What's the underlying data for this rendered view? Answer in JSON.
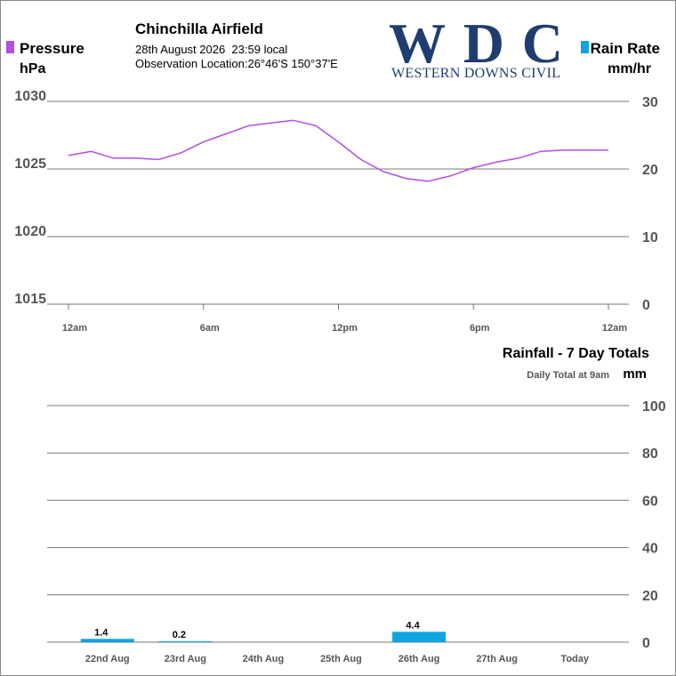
{
  "header": {
    "title": "Chinchilla Airfield",
    "datetime": "28th August 2026  23:59 local",
    "location": "Observation Location:26°46'S 150°37'E"
  },
  "logo": {
    "mark": "WDC",
    "name": "WESTERN DOWNS CIVIL"
  },
  "chart_data": [
    {
      "type": "line",
      "series": [
        {
          "name": "Pressure",
          "unit": "hPa",
          "color": "#b04fe0",
          "values": [
            1026.0,
            1026.3,
            1025.8,
            1025.8,
            1025.7,
            1026.2,
            1027.0,
            1027.6,
            1028.2,
            1028.4,
            1028.6,
            1028.2,
            1027.0,
            1025.7,
            1024.8,
            1024.3,
            1024.1,
            1024.5,
            1025.1,
            1025.5,
            1025.8,
            1026.3,
            1026.4,
            1026.4,
            1026.4
          ]
        }
      ],
      "x": [
        0,
        1,
        2,
        3,
        4,
        5,
        6,
        7,
        8,
        9,
        10,
        11,
        12,
        13,
        14,
        15,
        16,
        17,
        18,
        19,
        20,
        21,
        22,
        23,
        24
      ],
      "xlim": [
        0,
        24
      ],
      "xticks": [
        {
          "value": 0,
          "label": "12am"
        },
        {
          "value": 6,
          "label": "6am"
        },
        {
          "value": 12,
          "label": "12pm"
        },
        {
          "value": 18,
          "label": "6pm"
        },
        {
          "value": 24,
          "label": "12am"
        }
      ],
      "ylim": [
        1015,
        1030
      ],
      "yticks": [
        1015,
        1020,
        1025,
        1030
      ],
      "y2label": "Rain Rate",
      "y2unit": "mm/hr",
      "y2color": "#0ea5e0",
      "y2lim": [
        0,
        30
      ],
      "y2ticks": [
        0,
        10,
        20,
        30
      ],
      "grid": true
    },
    {
      "type": "bar",
      "title": "Rainfall - 7 Day Totals",
      "subtitle": "Daily Total at 9am",
      "unit": "mm",
      "categories": [
        "22nd Aug",
        "23rd Aug",
        "24th Aug",
        "25th Aug",
        "26th Aug",
        "27th Aug",
        "Today"
      ],
      "values": [
        1.4,
        0.2,
        null,
        null,
        4.4,
        null,
        null
      ],
      "color": "#0ea5e0",
      "ylim": [
        0,
        100
      ],
      "yticks": [
        0,
        20,
        40,
        60,
        80,
        100
      ],
      "grid": true
    }
  ]
}
